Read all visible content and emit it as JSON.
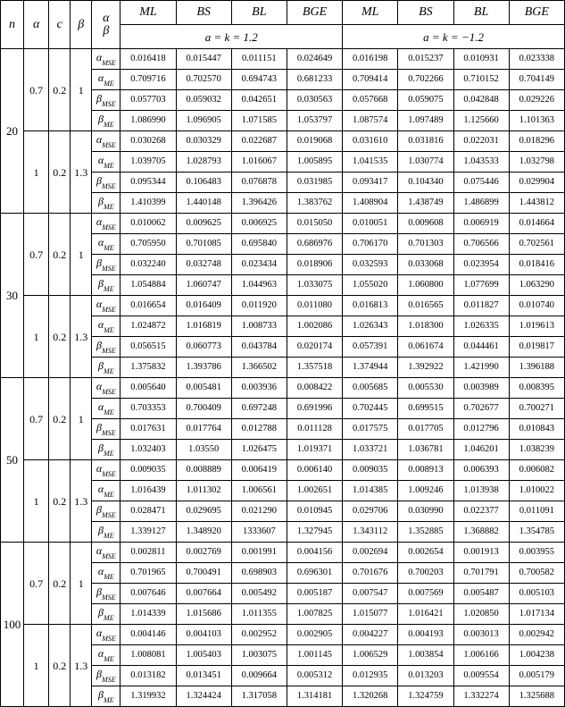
{
  "header": {
    "cols_main": [
      "n",
      "α",
      "c",
      "β"
    ],
    "ab_cell_top": "α",
    "ab_cell_bot": "β",
    "est": [
      "ML",
      "BS",
      "BL",
      "BGE"
    ],
    "ak_left": "a = k = 1.2",
    "ak_right": "a = k = −1.2"
  },
  "param_labels": {
    "a_mse": {
      "sym": "α",
      "sub": "MSE"
    },
    "a_me": {
      "sym": "α",
      "sub": "ME"
    },
    "b_mse": {
      "sym": "β",
      "sub": "MSE"
    },
    "b_me": {
      "sym": "β",
      "sub": "ME"
    }
  },
  "groups": [
    {
      "n": "20",
      "blocks": [
        {
          "alpha": "0.7",
          "c": "0.2",
          "beta": "1",
          "rows": [
            [
              "0.016418",
              "0.015447",
              "0.011151",
              "0.024649",
              "0.016198",
              "0.015237",
              "0.010931",
              "0.023338"
            ],
            [
              "0.709716",
              "0.702570",
              "0.694743",
              "0.681233",
              "0.709414",
              "0.702266",
              "0.710152",
              "0.704149"
            ],
            [
              "0.057703",
              "0.059032",
              "0.042651",
              "0.030563",
              "0.057668",
              "0.059075",
              "0.042848",
              "0.029226"
            ],
            [
              "1.086990",
              "1.096905",
              "1.071585",
              "1.053797",
              "1.087574",
              "1.097489",
              "1.125660",
              "1.101363"
            ]
          ]
        },
        {
          "alpha": "1",
          "c": "0.2",
          "beta": "1.3",
          "rows": [
            [
              "0.030268",
              "0.030329",
              "0.022687",
              "0.019068",
              "0.031610",
              "0.031816",
              "0.022031",
              "0.018296"
            ],
            [
              "1.039705",
              "1.028793",
              "1.016067",
              "1.005895",
              "1.041535",
              "1.030774",
              "1.043533",
              "1.032798"
            ],
            [
              "0.095344",
              "0.106483",
              "0.076878",
              "0.031985",
              "0.093417",
              "0.104340",
              "0.075446",
              "0.029904"
            ],
            [
              "1.410399",
              "1.440148",
              "1.396426",
              "1.383762",
              "1.408904",
              "1.438749",
              "1.486899",
              "1.443812"
            ]
          ]
        }
      ]
    },
    {
      "n": "30",
      "blocks": [
        {
          "alpha": "0.7",
          "c": "0.2",
          "beta": "1",
          "rows": [
            [
              "0.010062",
              "0.009625",
              "0.006925",
              "0.015050",
              "0.010051",
              "0.009608",
              "0.006919",
              "0.014664"
            ],
            [
              "0.705950",
              "0.701085",
              "0.695840",
              "0.686976",
              "0.706170",
              "0.701303",
              "0.706566",
              "0.702561"
            ],
            [
              "0.032240",
              "0.032748",
              "0.023434",
              "0.018906",
              "0.032593",
              "0.033068",
              "0.023954",
              "0.018416"
            ],
            [
              "1.054884",
              "1.060747",
              "1.044963",
              "1.033075",
              "1.055020",
              "1.060800",
              "1.077699",
              "1.063290"
            ]
          ]
        },
        {
          "alpha": "1",
          "c": "0.2",
          "beta": "1.3",
          "rows": [
            [
              "0.016654",
              "0.016409",
              "0.011920",
              "0.011080",
              "0.016813",
              "0.016565",
              "0.011827",
              "0.010740"
            ],
            [
              "1.024872",
              "1.016819",
              "1.008733",
              "1.002086",
              "1.026343",
              "1.018300",
              "1.026335",
              "1.019613"
            ],
            [
              "0.056515",
              "0.060773",
              "0.043784",
              "0.020174",
              "0.057391",
              "0.061674",
              "0.044461",
              "0.019817"
            ],
            [
              "1.375832",
              "1.393786",
              "1.366502",
              "1.357518",
              "1.374944",
              "1.392922",
              "1.421990",
              "1.396188"
            ]
          ]
        }
      ]
    },
    {
      "n": "50",
      "blocks": [
        {
          "alpha": "0.7",
          "c": "0.2",
          "beta": "1",
          "rows": [
            [
              "0.005640",
              "0.005481",
              "0.003936",
              "0.008422",
              "0.005685",
              "0.005530",
              "0.003989",
              "0.008395"
            ],
            [
              "0.703353",
              "0.700409",
              "0.697248",
              "0.691996",
              "0.702445",
              "0.699515",
              "0.702677",
              "0.700271"
            ],
            [
              "0.017631",
              "0.017764",
              "0.012788",
              "0.011128",
              "0.017575",
              "0.017705",
              "0.012796",
              "0.010843"
            ],
            [
              "1.032403",
              "1.03550",
              "1.026475",
              "1.019371",
              "1.033721",
              "1.036781",
              "1.046201",
              "1.038239"
            ]
          ]
        },
        {
          "alpha": "1",
          "c": "0.2",
          "beta": "1.3",
          "rows": [
            [
              "0.009035",
              "0.008889",
              "0.006419",
              "0.006140",
              "0.009035",
              "0.008913",
              "0.006393",
              "0.006082"
            ],
            [
              "1.016439",
              "1.011302",
              "1.006561",
              "1.002651",
              "1.014385",
              "1.009246",
              "1.013938",
              "1.010022"
            ],
            [
              "0.028471",
              "0.029695",
              "0.021290",
              "0.010945",
              "0.029706",
              "0.030990",
              "0.022377",
              "0.011091"
            ],
            [
              "1.339127",
              "1.348920",
              "1333607",
              "1.327945",
              "1.343112",
              "1.352885",
              "1.368882",
              "1.354785"
            ]
          ]
        }
      ]
    },
    {
      "n": "100",
      "blocks": [
        {
          "alpha": "0.7",
          "c": "0.2",
          "beta": "1",
          "rows": [
            [
              "0.002811",
              "0.002769",
              "0.001991",
              "0.004156",
              "0.002694",
              "0.002654",
              "0.001913",
              "0.003955"
            ],
            [
              "0.701965",
              "0.700491",
              "0.698903",
              "0.696301",
              "0.701676",
              "0.700203",
              "0.701791",
              "0.700582"
            ],
            [
              "0.007646",
              "0.007664",
              "0.005492",
              "0.005187",
              "0.007547",
              "0.007569",
              "0.005487",
              "0.005103"
            ],
            [
              "1.014339",
              "1.015686",
              "1.011355",
              "1.007825",
              "1.015077",
              "1.016421",
              "1.020850",
              "1.017134"
            ]
          ]
        },
        {
          "alpha": "1",
          "c": "0.2",
          "beta": "1.3",
          "rows": [
            [
              "0.004146",
              "0.004103",
              "0.002952",
              "0.002905",
              "0.004227",
              "0.004193",
              "0.003013",
              "0.002942"
            ],
            [
              "1.008081",
              "1.005403",
              "1.003075",
              "1.001145",
              "1.006529",
              "1.003854",
              "1.006166",
              "1.004238"
            ],
            [
              "0.013182",
              "0.013451",
              "0.009664",
              "0.005312",
              "0.012935",
              "0.013203",
              "0.009554",
              "0.005179"
            ],
            [
              "1.319932",
              "1.324424",
              "1.317058",
              "1.314181",
              "1.320268",
              "1.324759",
              "1.332274",
              "1.325688"
            ]
          ]
        }
      ]
    }
  ]
}
